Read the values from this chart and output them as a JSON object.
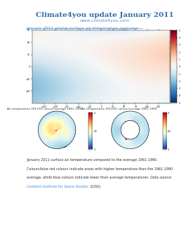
{
  "title": "Climate4you update January 2011",
  "title_color": "#2E6DA4",
  "title_fontsize": 7.5,
  "subtitle": "www.climate4you.com",
  "subtitle_color": "#4A90D9",
  "subtitle_fontsize": 4.5,
  "section_label": "January 2011 global surface air temperature overview",
  "section_label_color": "#4A90D9",
  "section_label_fontsize": 4.2,
  "bg_color": "#FFFFFF",
  "polar_north_label": "Air temperature 2011/01 versus average 1961-1990",
  "polar_south_label": "Air temperature 2011/01 versus average 1961-1990",
  "polar_label_fontsize": 3.0,
  "footer_text": "January 2011 surface air temperature compared to the average 1961-1990. Colours/blue red colours indicate areas with higher temperature than the 1961-1990 average, while blue colours indicate lower than average temperatures. Data source: Goddard Institute for Space Studies (GISS).",
  "footer_fontsize": 3.5,
  "footer_color": "#333333",
  "footer_link_color": "#4A90D9",
  "footer_link": "Goddard Institute for Space Studies",
  "footer_link2": "(GISS)"
}
